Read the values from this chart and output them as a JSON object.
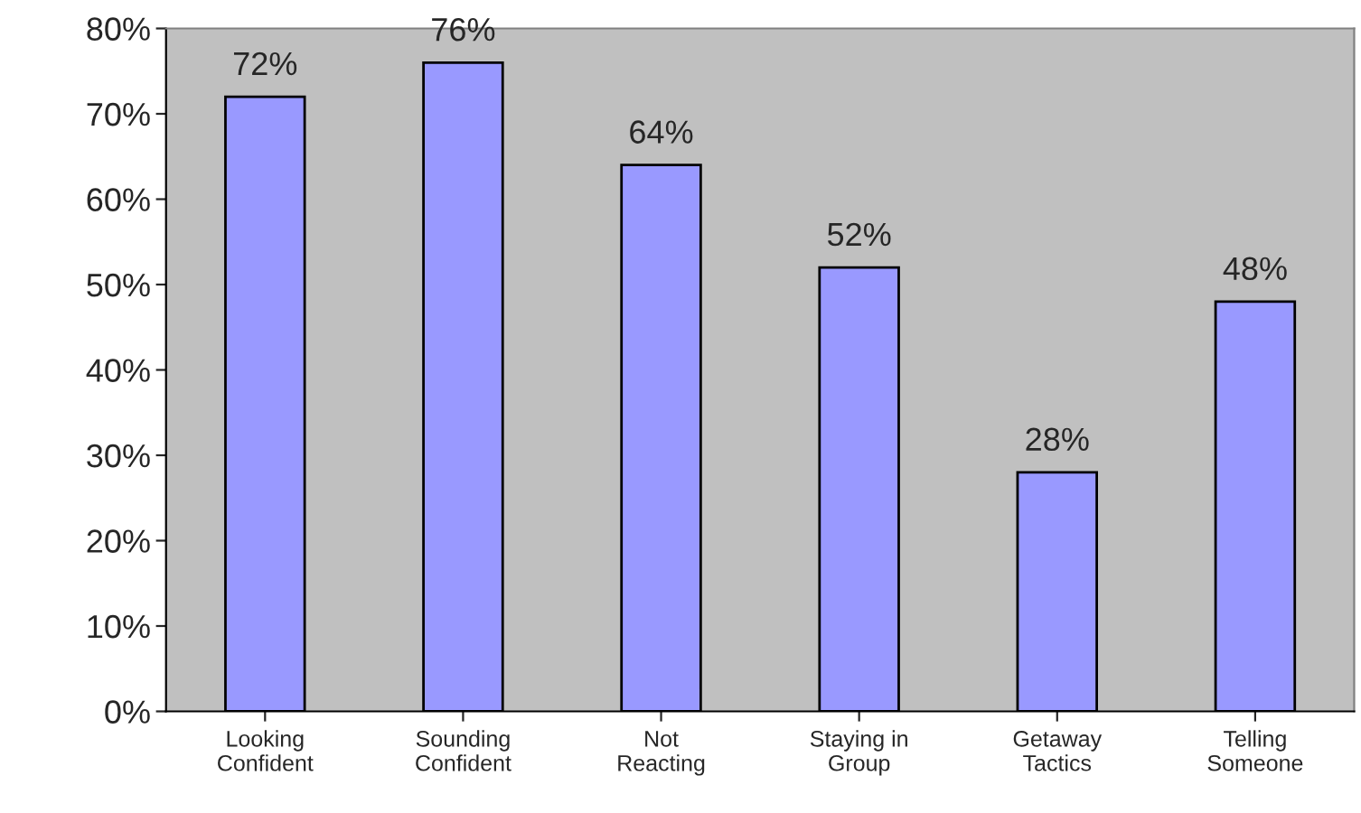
{
  "chart_data": {
    "type": "bar",
    "categories": [
      "Looking\nConfident",
      "Sounding\nConfident",
      "Not\nReacting",
      "Staying in\nGroup",
      "Getaway\nTactics",
      "Telling\nSomeone"
    ],
    "values": [
      72,
      76,
      64,
      52,
      28,
      48
    ],
    "value_labels": [
      "72%",
      "76%",
      "64%",
      "52%",
      "28%",
      "48%"
    ],
    "color": "#9999ff",
    "ylim": [
      0,
      80
    ],
    "yticks": [
      {
        "value": 0,
        "label": "0%"
      },
      {
        "value": 10,
        "label": "10%"
      },
      {
        "value": 20,
        "label": "20%"
      },
      {
        "value": 30,
        "label": "30%"
      },
      {
        "value": 40,
        "label": "40%"
      },
      {
        "value": 50,
        "label": "50%"
      },
      {
        "value": 60,
        "label": "60%"
      },
      {
        "value": 70,
        "label": "70%"
      },
      {
        "value": 80,
        "label": "80%"
      }
    ],
    "grid": false,
    "legend": false
  }
}
